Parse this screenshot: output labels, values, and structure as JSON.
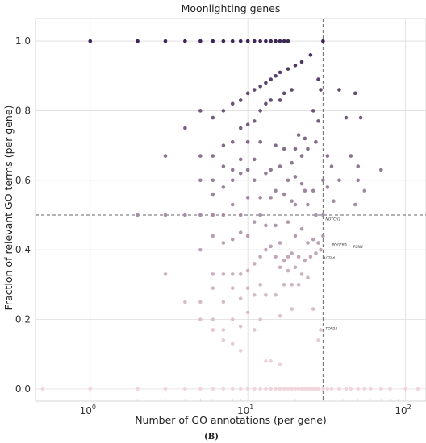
{
  "chart_data": {
    "type": "scatter",
    "title": "Moonlighting genes",
    "xlabel": "Number of GO annotations (per gene)",
    "ylabel": "Fraction of relevant GO terms (per gene)",
    "x_scale": "log",
    "xlim": [
      0.45,
      135
    ],
    "ylim": [
      -0.035,
      1.065
    ],
    "x_ticks": [
      {
        "value": 1,
        "base": "10",
        "exp": "0"
      },
      {
        "value": 10,
        "base": "10",
        "exp": "1"
      },
      {
        "value": 100,
        "base": "10",
        "exp": "2"
      }
    ],
    "y_ticks": [
      {
        "value": 0.0,
        "label": "0.0"
      },
      {
        "value": 0.2,
        "label": "0.2"
      },
      {
        "value": 0.4,
        "label": "0.4"
      },
      {
        "value": 0.6,
        "label": "0.6"
      },
      {
        "value": 0.8,
        "label": "0.8"
      },
      {
        "value": 1.0,
        "label": "1.0"
      }
    ],
    "grid": true,
    "reference_lines": {
      "x": 30,
      "y": 0.5
    },
    "color_scale": {
      "low": "#f1d3da",
      "high": "#2a1245",
      "encodes": "y"
    },
    "points": [
      [
        1,
        1
      ],
      [
        2,
        1
      ],
      [
        3,
        1
      ],
      [
        4,
        1
      ],
      [
        5,
        1
      ],
      [
        6,
        1
      ],
      [
        7,
        1
      ],
      [
        8,
        1
      ],
      [
        9,
        1
      ],
      [
        10,
        1
      ],
      [
        11,
        1
      ],
      [
        12,
        1
      ],
      [
        13,
        1
      ],
      [
        14,
        1
      ],
      [
        15,
        1
      ],
      [
        16,
        1
      ],
      [
        17,
        1
      ],
      [
        18,
        1
      ],
      [
        30,
        1
      ],
      [
        25,
        0.96
      ],
      [
        22,
        0.94
      ],
      [
        20,
        0.93
      ],
      [
        18,
        0.92
      ],
      [
        16,
        0.91
      ],
      [
        15,
        0.9
      ],
      [
        14,
        0.89
      ],
      [
        13,
        0.88
      ],
      [
        12,
        0.87
      ],
      [
        11,
        0.86
      ],
      [
        10,
        0.85
      ],
      [
        9,
        0.83
      ],
      [
        8,
        0.82
      ],
      [
        7,
        0.8
      ],
      [
        6,
        0.78
      ],
      [
        5,
        0.8
      ],
      [
        28,
        0.89
      ],
      [
        29,
        0.86
      ],
      [
        19,
        0.86
      ],
      [
        17,
        0.85
      ],
      [
        16,
        0.83
      ],
      [
        14,
        0.83
      ],
      [
        13,
        0.82
      ],
      [
        12,
        0.8
      ],
      [
        11,
        0.77
      ],
      [
        10,
        0.76
      ],
      [
        9,
        0.75
      ],
      [
        8,
        0.71
      ],
      [
        7,
        0.7
      ],
      [
        6,
        0.67
      ],
      [
        4,
        0.75
      ],
      [
        3,
        0.67
      ],
      [
        38,
        0.86
      ],
      [
        48,
        0.85
      ],
      [
        26,
        0.8
      ],
      [
        42,
        0.78
      ],
      [
        52,
        0.78
      ],
      [
        28,
        0.77
      ],
      [
        21,
        0.73
      ],
      [
        23,
        0.72
      ],
      [
        27,
        0.71
      ],
      [
        24,
        0.69
      ],
      [
        20,
        0.69
      ],
      [
        17,
        0.69
      ],
      [
        15,
        0.7
      ],
      [
        12,
        0.71
      ],
      [
        10,
        0.71
      ],
      [
        9,
        0.66
      ],
      [
        8,
        0.63
      ],
      [
        7,
        0.64
      ],
      [
        6,
        0.6
      ],
      [
        5,
        0.6
      ],
      [
        5,
        0.67
      ],
      [
        45,
        0.67
      ],
      [
        70,
        0.63
      ],
      [
        50,
        0.64
      ],
      [
        32,
        0.67
      ],
      [
        34,
        0.64
      ],
      [
        22,
        0.67
      ],
      [
        19,
        0.65
      ],
      [
        16,
        0.64
      ],
      [
        14,
        0.63
      ],
      [
        13,
        0.62
      ],
      [
        11,
        0.66
      ],
      [
        11,
        0.6
      ],
      [
        10,
        0.63
      ],
      [
        9,
        0.62
      ],
      [
        8,
        0.6
      ],
      [
        7,
        0.58
      ],
      [
        6,
        0.56
      ],
      [
        5,
        0.5
      ],
      [
        4,
        0.5
      ],
      [
        2,
        0.5
      ],
      [
        3,
        0.5
      ],
      [
        18,
        0.6
      ],
      [
        20,
        0.61
      ],
      [
        22,
        0.59
      ],
      [
        23,
        0.57
      ],
      [
        26,
        0.57
      ],
      [
        30,
        0.6
      ],
      [
        32,
        0.58
      ],
      [
        38,
        0.6
      ],
      [
        50,
        0.6
      ],
      [
        55,
        0.57
      ],
      [
        48,
        0.53
      ],
      [
        15,
        0.57
      ],
      [
        14,
        0.55
      ],
      [
        12,
        0.55
      ],
      [
        10,
        0.55
      ],
      [
        9,
        0.5
      ],
      [
        8,
        0.53
      ],
      [
        7,
        0.5
      ],
      [
        6,
        0.5
      ],
      [
        17,
        0.56
      ],
      [
        19,
        0.54
      ],
      [
        20,
        0.53
      ],
      [
        24,
        0.53
      ],
      [
        27,
        0.5
      ],
      [
        30,
        0.5
      ],
      [
        35,
        0.54
      ],
      [
        12,
        0.5
      ],
      [
        11,
        0.48
      ],
      [
        13,
        0.47
      ],
      [
        15,
        0.47
      ],
      [
        18,
        0.48
      ],
      [
        22,
        0.46
      ],
      [
        10,
        0.44
      ],
      [
        9,
        0.45
      ],
      [
        8,
        0.43
      ],
      [
        7,
        0.42
      ],
      [
        6,
        0.44
      ],
      [
        5,
        0.4
      ],
      [
        26,
        0.43
      ],
      [
        28,
        0.42
      ],
      [
        30,
        0.44
      ],
      [
        20,
        0.44
      ],
      [
        24,
        0.42
      ],
      [
        16,
        0.42
      ],
      [
        14,
        0.41
      ],
      [
        13,
        0.4
      ],
      [
        12,
        0.38
      ],
      [
        15,
        0.38
      ],
      [
        17,
        0.37
      ],
      [
        18,
        0.38
      ],
      [
        19,
        0.39
      ],
      [
        21,
        0.38
      ],
      [
        23,
        0.37
      ],
      [
        25,
        0.38
      ],
      [
        11,
        0.36
      ],
      [
        10,
        0.34
      ],
      [
        9,
        0.33
      ],
      [
        8,
        0.33
      ],
      [
        7,
        0.33
      ],
      [
        6,
        0.33
      ],
      [
        3,
        0.33
      ],
      [
        27,
        0.39
      ],
      [
        29,
        0.4
      ],
      [
        16,
        0.35
      ],
      [
        18,
        0.34
      ],
      [
        20,
        0.35
      ],
      [
        22,
        0.33
      ],
      [
        24,
        0.32
      ],
      [
        17,
        0.3
      ],
      [
        19,
        0.3
      ],
      [
        21,
        0.3
      ],
      [
        12,
        0.3
      ],
      [
        10,
        0.29
      ],
      [
        8,
        0.29
      ],
      [
        6,
        0.29
      ],
      [
        15,
        0.27
      ],
      [
        13,
        0.27
      ],
      [
        11,
        0.27
      ],
      [
        9,
        0.26
      ],
      [
        7,
        0.25
      ],
      [
        5,
        0.25
      ],
      [
        4,
        0.25
      ],
      [
        19,
        0.23
      ],
      [
        16,
        0.21
      ],
      [
        26,
        0.23
      ],
      [
        10,
        0.22
      ],
      [
        12,
        0.2
      ],
      [
        8,
        0.2
      ],
      [
        6,
        0.2
      ],
      [
        5,
        0.2
      ],
      [
        9,
        0.18
      ],
      [
        7,
        0.17
      ],
      [
        11,
        0.17
      ],
      [
        6,
        0.17
      ],
      [
        29,
        0.17
      ],
      [
        7,
        0.14
      ],
      [
        28,
        0.14
      ],
      [
        8,
        0.13
      ],
      [
        9,
        0.11
      ],
      [
        13,
        0.08
      ],
      [
        14,
        0.08
      ],
      [
        16,
        0.07
      ],
      [
        0.5,
        0
      ],
      [
        1,
        0
      ],
      [
        2,
        0
      ],
      [
        3,
        0
      ],
      [
        4,
        0
      ],
      [
        5,
        0
      ],
      [
        6,
        0
      ],
      [
        7,
        0
      ],
      [
        8,
        0
      ],
      [
        9,
        0
      ],
      [
        10,
        0
      ],
      [
        11,
        0
      ],
      [
        12,
        0
      ],
      [
        13,
        0
      ],
      [
        14,
        0
      ],
      [
        15,
        0
      ],
      [
        16,
        0
      ],
      [
        17,
        0
      ],
      [
        18,
        0
      ],
      [
        19,
        0
      ],
      [
        20,
        0
      ],
      [
        21,
        0
      ],
      [
        22,
        0
      ],
      [
        23,
        0
      ],
      [
        24,
        0
      ],
      [
        25,
        0
      ],
      [
        26,
        0
      ],
      [
        27,
        0
      ],
      [
        28,
        0
      ],
      [
        30,
        0
      ],
      [
        32,
        0
      ],
      [
        34,
        0
      ],
      [
        38,
        0
      ],
      [
        42,
        0
      ],
      [
        45,
        0
      ],
      [
        50,
        0
      ],
      [
        55,
        0
      ],
      [
        60,
        0
      ],
      [
        70,
        0
      ],
      [
        80,
        0
      ],
      [
        100,
        0
      ],
      [
        120,
        0
      ]
    ],
    "annotations": [
      {
        "text": "NOTCH1",
        "x": 30,
        "y": 0.49
      },
      {
        "text": "PDGFRA",
        "x": 33,
        "y": 0.415
      },
      {
        "text": "FUN4",
        "x": 45,
        "y": 0.41
      },
      {
        "text": "ACTA4",
        "x": 29,
        "y": 0.377
      },
      {
        "text": "TOP2A",
        "x": 30,
        "y": 0.175
      }
    ]
  },
  "caption": "(B)"
}
